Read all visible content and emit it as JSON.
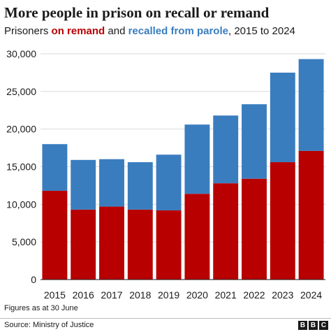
{
  "title": "More people in prison on recall or remand",
  "subtitle": {
    "prefix": "Prisoners ",
    "remand": "on remand",
    "middle": " and ",
    "recall": "recalled from parole",
    "suffix": ", 2015 to 2024"
  },
  "colors": {
    "remand": "#b80000",
    "recall": "#3a7dbf",
    "grid": "#d9d9d9"
  },
  "chart_data": {
    "type": "bar",
    "stacked": true,
    "categories": [
      "2015",
      "2016",
      "2017",
      "2018",
      "2019",
      "2020",
      "2021",
      "2022",
      "2023",
      "2024"
    ],
    "series": [
      {
        "name": "on remand",
        "values": [
          11800,
          9300,
          9700,
          9300,
          9200,
          11400,
          12800,
          13400,
          15600,
          17100
        ]
      },
      {
        "name": "recalled from parole",
        "values": [
          6200,
          6600,
          6300,
          6300,
          7400,
          9200,
          9000,
          9900,
          11900,
          12200
        ]
      }
    ],
    "ylim": [
      0,
      30000
    ],
    "yticks": [
      "0",
      "5,000",
      "10,000",
      "15,000",
      "20,000",
      "25,000",
      "30,000"
    ],
    "grid": true
  },
  "note": "Figures as at 30 June",
  "source": "Source: Ministry of Justice",
  "logo": [
    "B",
    "B",
    "C"
  ]
}
